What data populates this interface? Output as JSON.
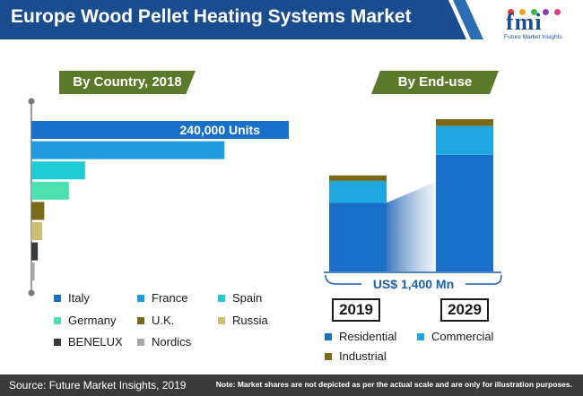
{
  "header": {
    "title": "Europe Wood Pellet Heating Systems Market",
    "logo_text": "fmi",
    "logo_subtitle": "Future Market Insights"
  },
  "panels": {
    "left_title": "By Country, 2018",
    "right_title": "By End-use"
  },
  "colors": {
    "header_blue": "#1a4d8f",
    "pill_green": "#5a7a2a",
    "footer_dark": "#3a3a3a"
  },
  "chart_data": [
    {
      "type": "bar",
      "orientation": "horizontal",
      "title": "By Country, 2018",
      "categories": [
        "Italy",
        "France",
        "Spain",
        "Germany",
        "U.K.",
        "Russia",
        "BENELUX",
        "Nordics"
      ],
      "values": [
        240000,
        180000,
        50000,
        35000,
        12000,
        10000,
        6000,
        3000
      ],
      "colors": [
        "#1a6fc9",
        "#1f9ce0",
        "#1fcbd4",
        "#4de0b0",
        "#7a6a1a",
        "#c8c070",
        "#3a3a3a",
        "#a8a8a8"
      ],
      "data_label": "240,000 Units",
      "unit": "Units",
      "legend_position": "bottom"
    },
    {
      "type": "bar",
      "stacked": true,
      "title": "By End-use",
      "categories": [
        "2019",
        "2029"
      ],
      "series": [
        {
          "name": "Residential",
          "color": "#1a6fc9",
          "values": [
            1000,
            1700
          ]
        },
        {
          "name": "Commercial",
          "color": "#1fa8e0",
          "values": [
            320,
            420
          ]
        },
        {
          "name": "Industrial",
          "color": "#7a6a1a",
          "values": [
            80,
            100
          ]
        }
      ],
      "annotation": "US$ 1,400 Mn",
      "legend_position": "bottom"
    }
  ],
  "footer": {
    "source": "Source: Future Market Insights, 2019",
    "note": "Note: Market shares are not depicted as per the actual scale and are only for illustration purposes."
  }
}
